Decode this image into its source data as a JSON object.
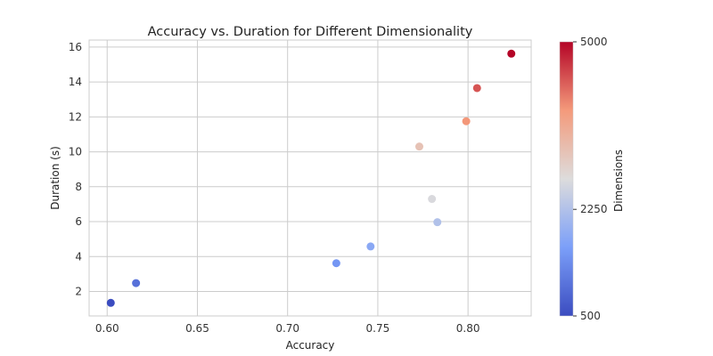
{
  "chart_data": {
    "type": "scatter",
    "title": "Accuracy vs. Duration for Different Dimensionality",
    "xlabel": "Accuracy",
    "ylabel": "Duration (s)",
    "xlim": [
      0.59,
      0.835
    ],
    "ylim": [
      0.6,
      16.4
    ],
    "xticks": [
      0.6,
      0.65,
      0.7,
      0.75,
      0.8
    ],
    "xtick_labels": [
      "0.60",
      "0.65",
      "0.70",
      "0.75",
      "0.80"
    ],
    "yticks": [
      2,
      4,
      6,
      8,
      10,
      12,
      14,
      16
    ],
    "ytick_labels": [
      "2",
      "4",
      "6",
      "8",
      "10",
      "12",
      "14",
      "16"
    ],
    "grid": true,
    "colormap": "coolwarm",
    "colorbar": {
      "label": "Dimensions",
      "min": 500,
      "max": 5000,
      "ticks": [
        500,
        2250,
        5000
      ],
      "tick_labels": [
        "500",
        "2250",
        "5000"
      ]
    },
    "points": [
      {
        "x": 0.602,
        "y": 1.35,
        "dimensions": 500
      },
      {
        "x": 0.616,
        "y": 2.48,
        "dimensions": 1000
      },
      {
        "x": 0.727,
        "y": 3.62,
        "dimensions": 1500
      },
      {
        "x": 0.746,
        "y": 4.58,
        "dimensions": 1800
      },
      {
        "x": 0.783,
        "y": 5.97,
        "dimensions": 2250
      },
      {
        "x": 0.78,
        "y": 7.3,
        "dimensions": 2700
      },
      {
        "x": 0.773,
        "y": 10.3,
        "dimensions": 3200
      },
      {
        "x": 0.799,
        "y": 11.75,
        "dimensions": 3900
      },
      {
        "x": 0.805,
        "y": 13.65,
        "dimensions": 4400
      },
      {
        "x": 0.824,
        "y": 15.62,
        "dimensions": 5000
      }
    ]
  }
}
